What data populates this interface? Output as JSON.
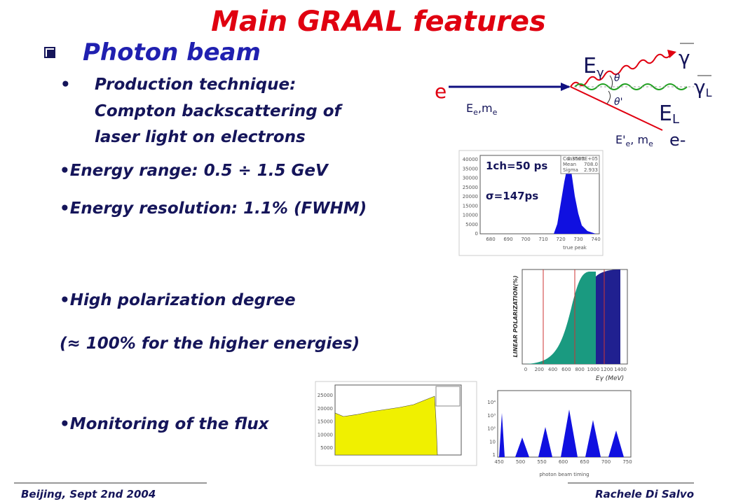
{
  "header": {
    "title": "Main GRAAL features"
  },
  "section": {
    "title": "Photon beam"
  },
  "production": [
    "Production technique:",
    "Compton backscattering of",
    "laser light on electrons"
  ],
  "bullets": [
    "•Energy range:  0.5 ÷ 1.5 GeV",
    "•Energy resolution: 1.1% (FWHM)",
    "•High polarization degree",
    "(≈ 100% for the higher energies)",
    "•Monitoring of the flux"
  ],
  "diagram": {
    "electron": "e",
    "electron_in": {
      "main": "E",
      "sub1": "e",
      "mid": ",m",
      "sub2": "e"
    },
    "gamma_energy": {
      "main": "E",
      "sub": "γ"
    },
    "gamma": "γ",
    "laser": {
      "main": "γ",
      "sub": "L"
    },
    "laser_energy": {
      "main": "E",
      "sub": "L"
    },
    "electron_out": {
      "main": "E'",
      "sub1": "e",
      "mid": ", m",
      "sub2": "e"
    },
    "electron_out_label": "e-",
    "theta": "θ",
    "theta_prime": "θ'"
  },
  "histogram": {
    "annotations": [
      "1ch=50 ps",
      "σ=147ps"
    ],
    "yticks": [
      "40000",
      "35000",
      "30000",
      "25000",
      "20000",
      "15000",
      "10000",
      "5000",
      "0"
    ],
    "xticks": [
      "680",
      "690",
      "700",
      "710",
      "720",
      "730",
      "740"
    ],
    "xlabel": "true peak",
    "stats": [
      [
        "Constant",
        "0.3565E+05"
      ],
      [
        "Mean",
        "708.0"
      ],
      [
        "Sigma",
        "2.933"
      ]
    ]
  },
  "polarization": {
    "ylabel": "LINEAR POLARIZATION(%)",
    "xticks": [
      "0",
      "200",
      "400",
      "600",
      "800",
      "1000",
      "1200",
      "1400"
    ],
    "xlabel": "Eγ (MeV)"
  },
  "flux": {
    "yticks": [
      "25000",
      "20000",
      "15000",
      "10000",
      "5000"
    ]
  },
  "timing": {
    "yticks": [
      "10⁴",
      "10³",
      "10²",
      "10",
      "1"
    ],
    "xticks": [
      "450",
      "500",
      "550",
      "600",
      "650",
      "700",
      "750"
    ],
    "xlabel": "photon beam timing"
  },
  "footer": {
    "left": "Beijing, Sept 2nd 2004",
    "right": "Rachele Di Salvo"
  }
}
